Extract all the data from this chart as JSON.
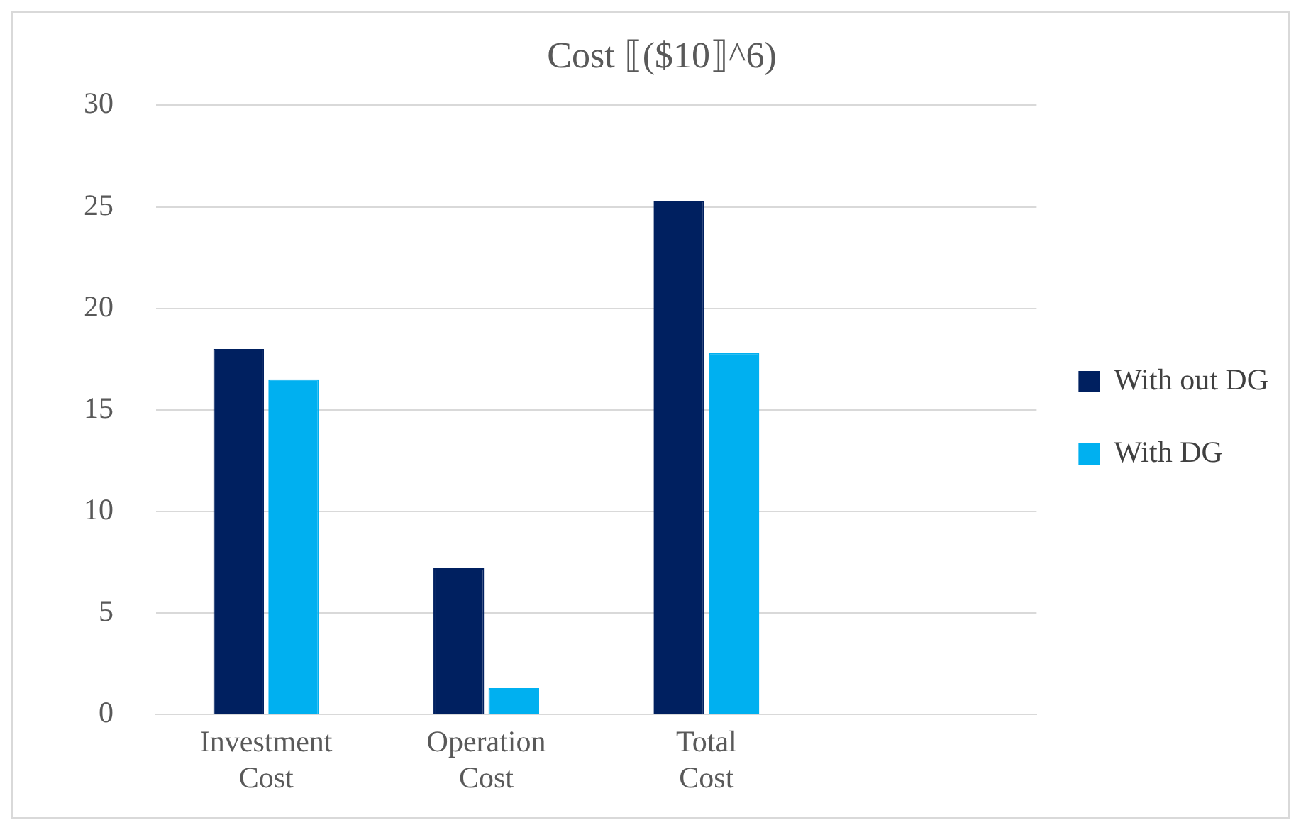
{
  "chart_data": {
    "type": "bar",
    "title": "Cost ⟦($10⟧^6)",
    "categories": [
      "Investment Cost",
      "Operation Cost",
      "Total Cost",
      null
    ],
    "series": [
      {
        "name": "With out DG",
        "color": "#002060",
        "values": [
          18.0,
          7.2,
          25.3,
          null
        ]
      },
      {
        "name": "With DG",
        "color": "#00b0f0",
        "values": [
          16.5,
          1.3,
          17.8,
          null
        ]
      }
    ],
    "ylim": [
      0,
      30
    ],
    "yticks": [
      0,
      5,
      10,
      15,
      20,
      25,
      30
    ],
    "grid": "y",
    "legend": "right"
  }
}
